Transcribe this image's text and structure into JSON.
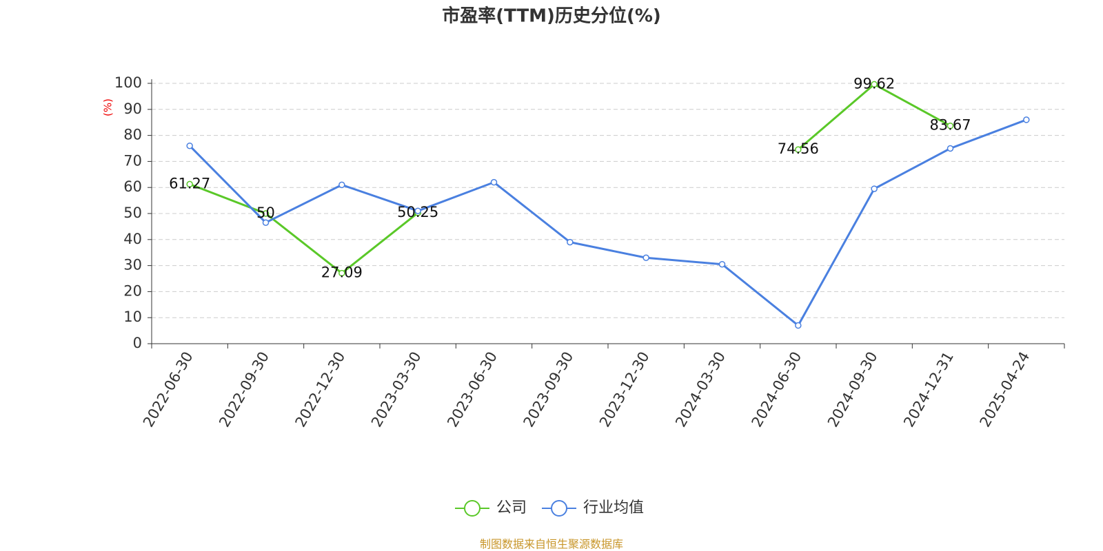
{
  "chart_data": {
    "type": "line",
    "title": "市盈率(TTM)历史分位(%)",
    "y_label": "(%)",
    "source": "制图数据来自恒生聚源数据库",
    "categories": [
      "2022-06-30",
      "2022-09-30",
      "2022-12-30",
      "2023-03-30",
      "2023-06-30",
      "2023-09-30",
      "2023-12-30",
      "2024-03-30",
      "2024-06-30",
      "2024-09-30",
      "2024-12-31",
      "2025-04-24"
    ],
    "series": [
      {
        "name": "公司",
        "color": "#5ac828",
        "show_labels": true,
        "values": [
          61.27,
          50,
          27.09,
          50.25,
          null,
          null,
          null,
          null,
          74.56,
          99.62,
          83.67,
          null
        ]
      },
      {
        "name": "行业均值",
        "color": "#4a80e0",
        "show_labels": false,
        "values": [
          76,
          46.5,
          61,
          51,
          62,
          39,
          33,
          30.5,
          7,
          59.5,
          75,
          86
        ]
      }
    ],
    "ylim": [
      0,
      100
    ],
    "yticks": [
      0,
      10,
      20,
      30,
      40,
      50,
      60,
      70,
      80,
      90,
      100
    ],
    "grid": true,
    "legend": "bottom"
  }
}
